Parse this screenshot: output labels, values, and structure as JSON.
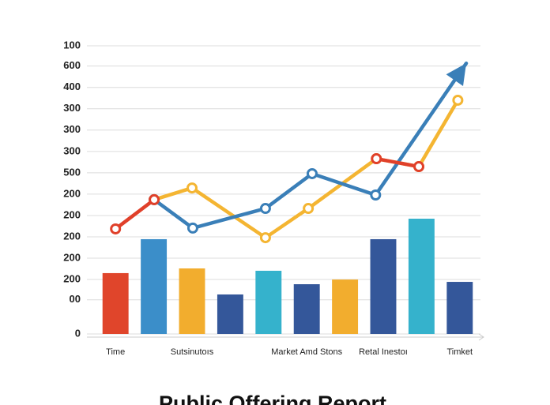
{
  "chart_data": {
    "type": "bar",
    "title": "Public Offering Report",
    "categories": [
      "Time",
      null,
      "Sutsinutoıs",
      null,
      null,
      "Market Amd Stons",
      null,
      "Retal Inestoı",
      null,
      "Timket"
    ],
    "values": [
      2.85,
      4.44,
      3.07,
      1.85,
      2.96,
      2.33,
      2.55,
      4.44,
      5.4,
      2.44
    ],
    "colors": [
      "#e0452b",
      "#3b8ec9",
      "#f2ad2e",
      "#34579a",
      "#35b2cc",
      "#34579a",
      "#f2ad2e",
      "#34579a",
      "#35b2cc",
      "#34579a"
    ],
    "xlim": [
      -0.5,
      9.5
    ],
    "ylim": [
      0,
      13.5
    ],
    "yticks": [
      0,
      {
        "value": 1.6,
        "label": "00"
      },
      {
        "value": 2.55,
        "label": "200"
      },
      {
        "value": 3.55,
        "label": "200"
      },
      {
        "value": 4.55,
        "label": "200"
      },
      {
        "value": 5.55,
        "label": "200"
      },
      {
        "value": 6.55,
        "label": "200"
      },
      {
        "value": 7.55,
        "label": "500"
      },
      {
        "value": 8.55,
        "label": "300"
      },
      {
        "value": 9.55,
        "label": "300"
      },
      {
        "value": 10.55,
        "label": "300"
      },
      {
        "value": 11.55,
        "label": "400"
      },
      {
        "value": 12.55,
        "label": "600"
      },
      {
        "value": 13.5,
        "label": "100"
      }
    ],
    "grid": true,
    "lines": [
      {
        "color": "#f4b532",
        "x": [
          1.01,
          2.0,
          3.92,
          5.04,
          6.82,
          7.93,
          8.95
        ],
        "values": [
          6.29,
          6.84,
          4.51,
          5.88,
          8.21,
          7.84,
          10.95
        ]
      },
      {
        "color": "#3a7fb8",
        "arrow": true,
        "x": [
          1.01,
          2.02,
          3.92,
          5.14,
          6.8,
          9.17
        ],
        "values": [
          6.29,
          4.96,
          5.88,
          7.51,
          6.51,
          12.68
        ]
      },
      {
        "color": "#e0402a",
        "x": [
          0,
          1.01,
          null,
          6.82,
          7.93
        ],
        "values": [
          4.92,
          6.29,
          null,
          8.21,
          7.84
        ]
      }
    ]
  }
}
